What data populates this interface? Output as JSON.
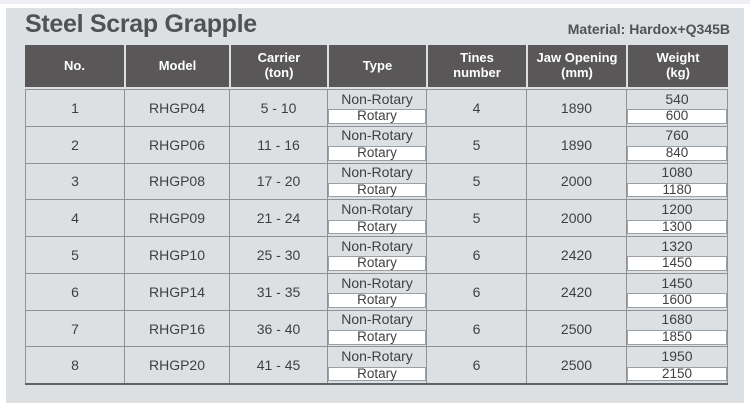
{
  "header": {
    "title": "Steel Scrap Grapple",
    "material": "Material: Hardox+Q345B"
  },
  "table": {
    "columns": [
      {
        "line1": "No.",
        "line2": ""
      },
      {
        "line1": "Model",
        "line2": ""
      },
      {
        "line1": "Carrier",
        "line2": "(ton)"
      },
      {
        "line1": "Type",
        "line2": ""
      },
      {
        "line1": "Tines",
        "line2": "number"
      },
      {
        "line1": "Jaw Opening",
        "line2": "(mm)"
      },
      {
        "line1": "Weight",
        "line2": "(kg)"
      }
    ],
    "rows": [
      {
        "no": "1",
        "model": "RHGP04",
        "carrier": "5 - 10",
        "type_top": "Non-Rotary",
        "type_bottom": "Rotary",
        "tines": "4",
        "jaw_opening": "1890",
        "weight_top": "540",
        "weight_bottom": "600"
      },
      {
        "no": "2",
        "model": "RHGP06",
        "carrier": "11 - 16",
        "type_top": "Non-Rotary",
        "type_bottom": "Rotary",
        "tines": "5",
        "jaw_opening": "1890",
        "weight_top": "760",
        "weight_bottom": "840"
      },
      {
        "no": "3",
        "model": "RHGP08",
        "carrier": "17 - 20",
        "type_top": "Non-Rotary",
        "type_bottom": "Rotary",
        "tines": "5",
        "jaw_opening": "2000",
        "weight_top": "1080",
        "weight_bottom": "1180"
      },
      {
        "no": "4",
        "model": "RHGP09",
        "carrier": "21 - 24",
        "type_top": "Non-Rotary",
        "type_bottom": "Rotary",
        "tines": "5",
        "jaw_opening": "2000",
        "weight_top": "1200",
        "weight_bottom": "1300"
      },
      {
        "no": "5",
        "model": "RHGP10",
        "carrier": "25 - 30",
        "type_top": "Non-Rotary",
        "type_bottom": "Rotary",
        "tines": "6",
        "jaw_opening": "2420",
        "weight_top": "1320",
        "weight_bottom": "1450"
      },
      {
        "no": "6",
        "model": "RHGP14",
        "carrier": "31 - 35",
        "type_top": "Non-Rotary",
        "type_bottom": "Rotary",
        "tines": "6",
        "jaw_opening": "2420",
        "weight_top": "1450",
        "weight_bottom": "1600"
      },
      {
        "no": "7",
        "model": "RHGP16",
        "carrier": "36 - 40",
        "type_top": "Non-Rotary",
        "type_bottom": "Rotary",
        "tines": "6",
        "jaw_opening": "2500",
        "weight_top": "1680",
        "weight_bottom": "1850"
      },
      {
        "no": "8",
        "model": "RHGP20",
        "carrier": "41 - 45",
        "type_top": "Non-Rotary",
        "type_bottom": "Rotary",
        "tines": "6",
        "jaw_opening": "2500",
        "weight_top": "1950",
        "weight_bottom": "2150"
      }
    ]
  },
  "colors": {
    "panel_bg": "#dde0e3",
    "header_cell_bg": "#595757",
    "header_text": "#ffffff",
    "body_text": "#3f3f41",
    "title_text": "#515254",
    "grid_line": "#8f9296",
    "white_cell_bg": "#ffffff",
    "white_cell_border": "#9ba0a5",
    "table_bottom_line": "#606367"
  }
}
